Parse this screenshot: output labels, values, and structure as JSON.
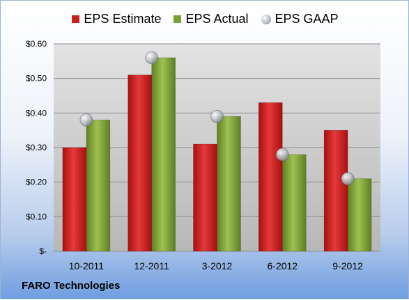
{
  "chart_data": {
    "type": "bar",
    "categories": [
      "10-2011",
      "12-2011",
      "3-2012",
      "6-2012",
      "9-2012"
    ],
    "series": [
      {
        "name": "EPS Estimate",
        "values": [
          0.3,
          0.51,
          0.31,
          0.43,
          0.35
        ],
        "color": "#cc1f1f",
        "kind": "bar"
      },
      {
        "name": "EPS Actual",
        "values": [
          0.38,
          0.56,
          0.39,
          0.28,
          0.21
        ],
        "color": "#7aa032",
        "kind": "bar"
      },
      {
        "name": "EPS GAAP",
        "values": [
          0.38,
          0.56,
          0.39,
          0.28,
          0.21
        ],
        "color": "#b0b4bb",
        "kind": "marker"
      }
    ],
    "yticks": [
      "$-",
      "$0.10",
      "$0.20",
      "$0.30",
      "$0.40",
      "$0.50",
      "$0.60"
    ],
    "ylim": [
      0,
      0.6
    ],
    "grid": true,
    "legend_position": "top"
  },
  "footer": {
    "company": "FARO Technologies"
  }
}
